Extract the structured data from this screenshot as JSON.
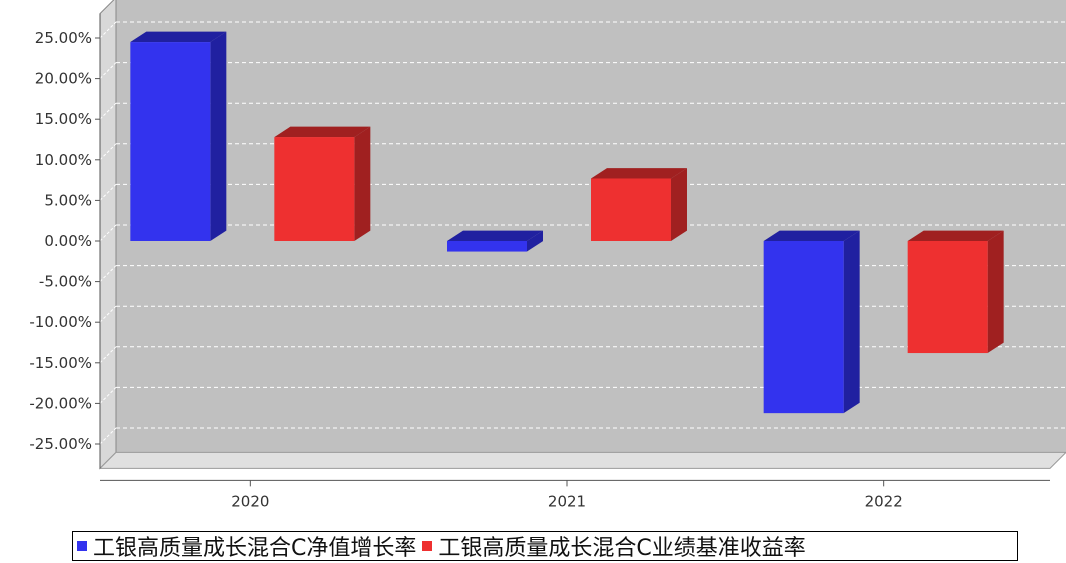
{
  "chart_data": {
    "type": "bar",
    "style": "3d",
    "categories": [
      "2020",
      "2021",
      "2022"
    ],
    "series": [
      {
        "name": "工银高质量成长混合C净值增长率",
        "color": "#3333ee",
        "side_color": "#2020a0",
        "values": [
          24.5,
          -1.3,
          -21.2
        ]
      },
      {
        "name": "工银高质量成长混合C业绩基准收益率",
        "color": "#ee3030",
        "side_color": "#a02020",
        "values": [
          12.8,
          7.7,
          -13.8
        ]
      }
    ],
    "yticks": [
      "25.00%",
      "20.00%",
      "15.00%",
      "10.00%",
      "5.00%",
      "0.00%",
      "-5.00%",
      "-10.00%",
      "-15.00%",
      "-20.00%",
      "-25.00%"
    ],
    "ylim": [
      -28,
      28
    ],
    "grid": true,
    "legend_position": "bottom",
    "plot_background": "#c0c0c0"
  }
}
